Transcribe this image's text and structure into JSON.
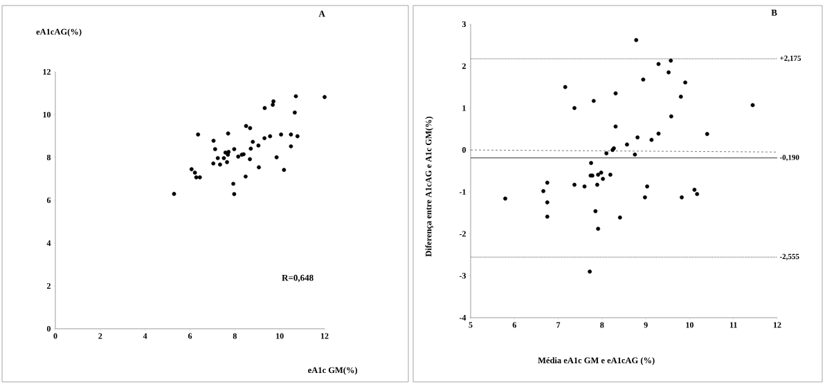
{
  "chart_data": [
    {
      "type": "scatter",
      "title": "A",
      "xlabel": "eA1c GM(%)",
      "ylabel": "eA1cAG(%)",
      "annotations": [
        "R=0,648"
      ],
      "grid": false,
      "series": [
        {
          "marker": "circle",
          "color": "#000000",
          "x": [
            5.29,
            6.07,
            6.22,
            6.28,
            6.44,
            6.36,
            7.05,
            7.12,
            7.04,
            7.24,
            7.34,
            7.7,
            7.58,
            7.72,
            7.51,
            7.69,
            7.65,
            7.97,
            8.15,
            8.31,
            8.39,
            7.93,
            7.97,
            8.48,
            8.5,
            8.68,
            8.8,
            8.71,
            8.67,
            9.05,
            9.07,
            9.32,
            9.57,
            9.33,
            9.69,
            9.72,
            10.06,
            9.86,
            10.19,
            10.5,
            10.79,
            10.5,
            10.67,
            10.72,
            12.0
          ],
          "values": [
            6.3,
            7.45,
            7.29,
            7.07,
            7.07,
            9.07,
            8.78,
            8.39,
            7.72,
            7.97,
            7.67,
            9.12,
            8.23,
            8.26,
            7.97,
            8.13,
            7.78,
            8.39,
            8.04,
            8.13,
            8.15,
            6.77,
            6.29,
            7.11,
            9.47,
            9.37,
            8.73,
            8.41,
            7.92,
            8.56,
            7.54,
            8.9,
            8.99,
            10.31,
            10.46,
            10.62,
            9.07,
            8.01,
            7.42,
            9.07,
            8.99,
            8.52,
            10.1,
            10.86,
            10.82
          ]
        }
      ],
      "xlim": [
        0,
        12
      ],
      "ylim": [
        0,
        12
      ],
      "xticks": [
        0,
        2,
        4,
        6,
        8,
        10,
        12
      ],
      "yticks": [
        0,
        2,
        4,
        6,
        8,
        10,
        12
      ]
    },
    {
      "type": "scatter",
      "title": "B",
      "xlabel": "Média eA1c GM e eA1cAG (%)",
      "ylabel": "Diferença entre A1cAG e A1c GM(%)",
      "grid": false,
      "series": [
        {
          "marker": "circle",
          "color": "#000000",
          "x": [
            8.78,
            7.16,
            7.37,
            7.81,
            8.31,
            8.31,
            8.57,
            8.27,
            8.24,
            8.1,
            8.75,
            7.75,
            9.29,
            9.57,
            9.52,
            8.94,
            9.9,
            9.8,
            11.44,
            9.58,
            8.81,
            9.13,
            9.29,
            10.4,
            7.98,
            7.74,
            7.78,
            7.91,
            8.02,
            8.19,
            7.37,
            7.6,
            7.89,
            6.75,
            6.66,
            5.79,
            6.75,
            6.75,
            7.85,
            8.41,
            7.91,
            7.72,
            9.03,
            8.98,
            9.82,
            10.11,
            10.17
          ],
          "values": [
            2.62,
            1.5,
            1.0,
            1.17,
            1.35,
            0.56,
            0.13,
            0.04,
            0.0,
            -0.08,
            -0.11,
            -0.31,
            2.05,
            2.13,
            1.85,
            1.68,
            1.61,
            1.27,
            1.07,
            0.8,
            0.3,
            0.24,
            0.39,
            0.38,
            -0.54,
            -0.61,
            -0.61,
            -0.59,
            -0.69,
            -0.59,
            -0.83,
            -0.87,
            -0.83,
            -0.78,
            -0.98,
            -1.16,
            -1.25,
            -1.59,
            -1.46,
            -1.61,
            -1.88,
            -2.9,
            -0.87,
            -1.13,
            -1.13,
            -0.95,
            -1.05
          ]
        },
        {
          "type": "line",
          "marker": "none",
          "color": "#555555",
          "line_style": "dashed",
          "x": [
            5,
            12
          ],
          "values": [
            0,
            -0.05
          ]
        }
      ],
      "ref_lines": [
        {
          "axis": "y",
          "value": 2.175,
          "label": "+2,175",
          "color": "#000000",
          "line_style": "dotted"
        },
        {
          "axis": "y",
          "value": -0.19,
          "label": "-0,190",
          "color": "#000000",
          "line_style": "solid"
        },
        {
          "axis": "y",
          "value": -2.555,
          "label": "-2,555",
          "color": "#000000",
          "line_style": "dotted"
        }
      ],
      "xlim": [
        5,
        12
      ],
      "ylim": [
        -4,
        3
      ],
      "xticks": [
        5,
        6,
        7,
        8,
        9,
        10,
        11,
        12
      ],
      "yticks": [
        -4,
        -3,
        -2,
        -1,
        0,
        1,
        2,
        3
      ]
    }
  ]
}
